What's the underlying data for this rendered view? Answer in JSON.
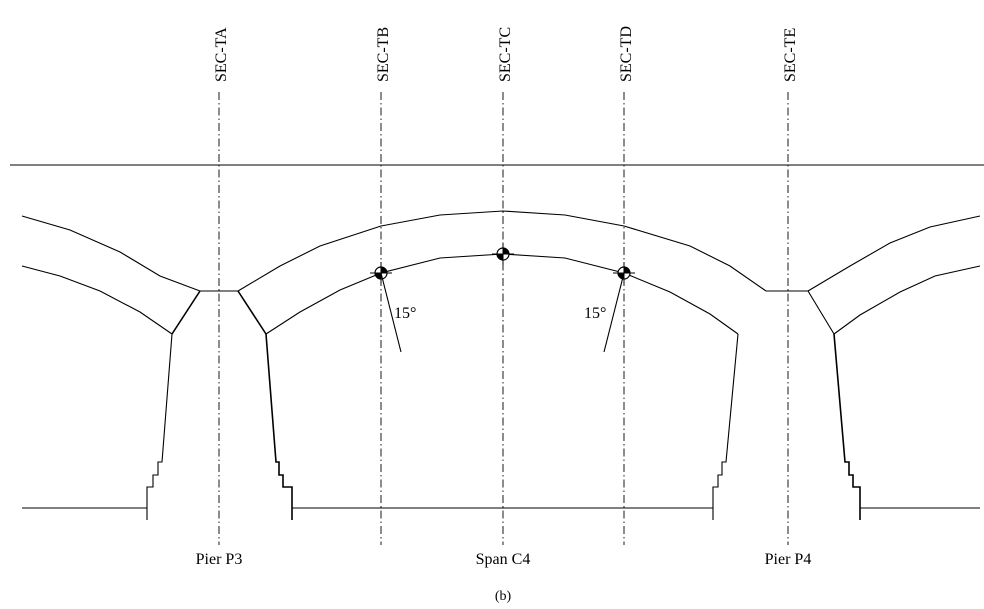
{
  "sections": [
    "SEC-TA",
    "SEC-TB",
    "SEC-TC",
    "SEC-TD",
    "SEC-TE"
  ],
  "bottom_labels": {
    "pier_left": "Pier P3",
    "span": "Span C4",
    "pier_right": "Pier P4"
  },
  "angles": {
    "left": "15°",
    "right": "15°"
  },
  "caption": "(b)"
}
